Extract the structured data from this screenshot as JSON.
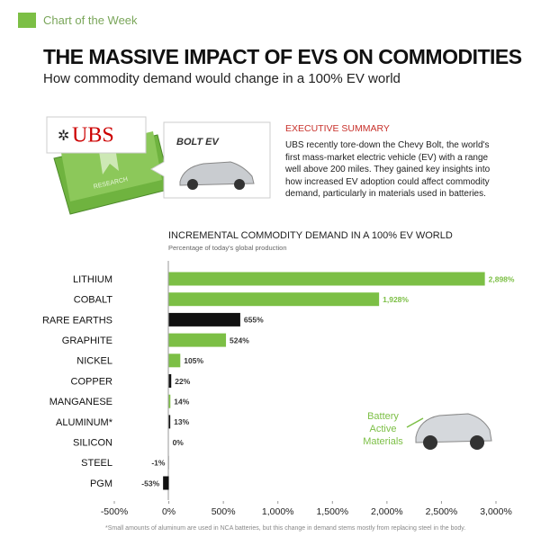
{
  "header": {
    "tag": "Chart of the Week",
    "title": "THE MASSIVE IMPACT OF EVS ON COMMODITIES",
    "subtitle": "How commodity demand would change in a 100% EV world"
  },
  "illustration": {
    "brand": "UBS",
    "book": "RESEARCH",
    "car": "BOLT EV"
  },
  "summary": {
    "heading": "EXECUTIVE SUMMARY",
    "text": "UBS recently tore-down the Chevy Bolt, the world's first mass-market electric vehicle (EV) with a range well above 200 miles. They gained key insights into how increased EV adoption could affect commodity demand, particularly in materials used in batteries."
  },
  "chart_data": {
    "type": "bar",
    "orientation": "horizontal",
    "title": "INCREMENTAL COMMODITY DEMAND IN A 100% EV WORLD",
    "subtitle": "Percentage of today's global production",
    "categories": [
      "LITHIUM",
      "COBALT",
      "RARE EARTHS",
      "GRAPHITE",
      "NICKEL",
      "COPPER",
      "MANGANESE",
      "ALUMINUM*",
      "SILICON",
      "STEEL",
      "PGM"
    ],
    "values": [
      2898,
      1928,
      655,
      524,
      105,
      22,
      14,
      13,
      0,
      -1,
      -53
    ],
    "value_labels": [
      "2,898%",
      "1,928%",
      "655%",
      "524%",
      "105%",
      "22%",
      "14%",
      "13%",
      "0%",
      "-1%",
      "-53%"
    ],
    "colors": [
      "#7cbf45",
      "#7cbf45",
      "#111111",
      "#7cbf45",
      "#7cbf45",
      "#111111",
      "#7cbf45",
      "#111111",
      "#111111",
      "#111111",
      "#111111"
    ],
    "xlim": [
      -500,
      3000
    ],
    "xticks": [
      {
        "value": -500,
        "label": "-500%"
      },
      {
        "value": 0,
        "label": "0%"
      },
      {
        "value": 500,
        "label": "500%"
      },
      {
        "value": 1000,
        "label": "1,000%"
      },
      {
        "value": 1500,
        "label": "1,500%"
      },
      {
        "value": 2000,
        "label": "2,000%"
      },
      {
        "value": 2500,
        "label": "2,500%"
      },
      {
        "value": 3000,
        "label": "3,000%"
      }
    ],
    "annotation": "Battery Active Materials",
    "footnote": "*Small amounts of aluminum are used in NCA batteries, but this change in demand stems mostly from replacing steel in the body."
  }
}
